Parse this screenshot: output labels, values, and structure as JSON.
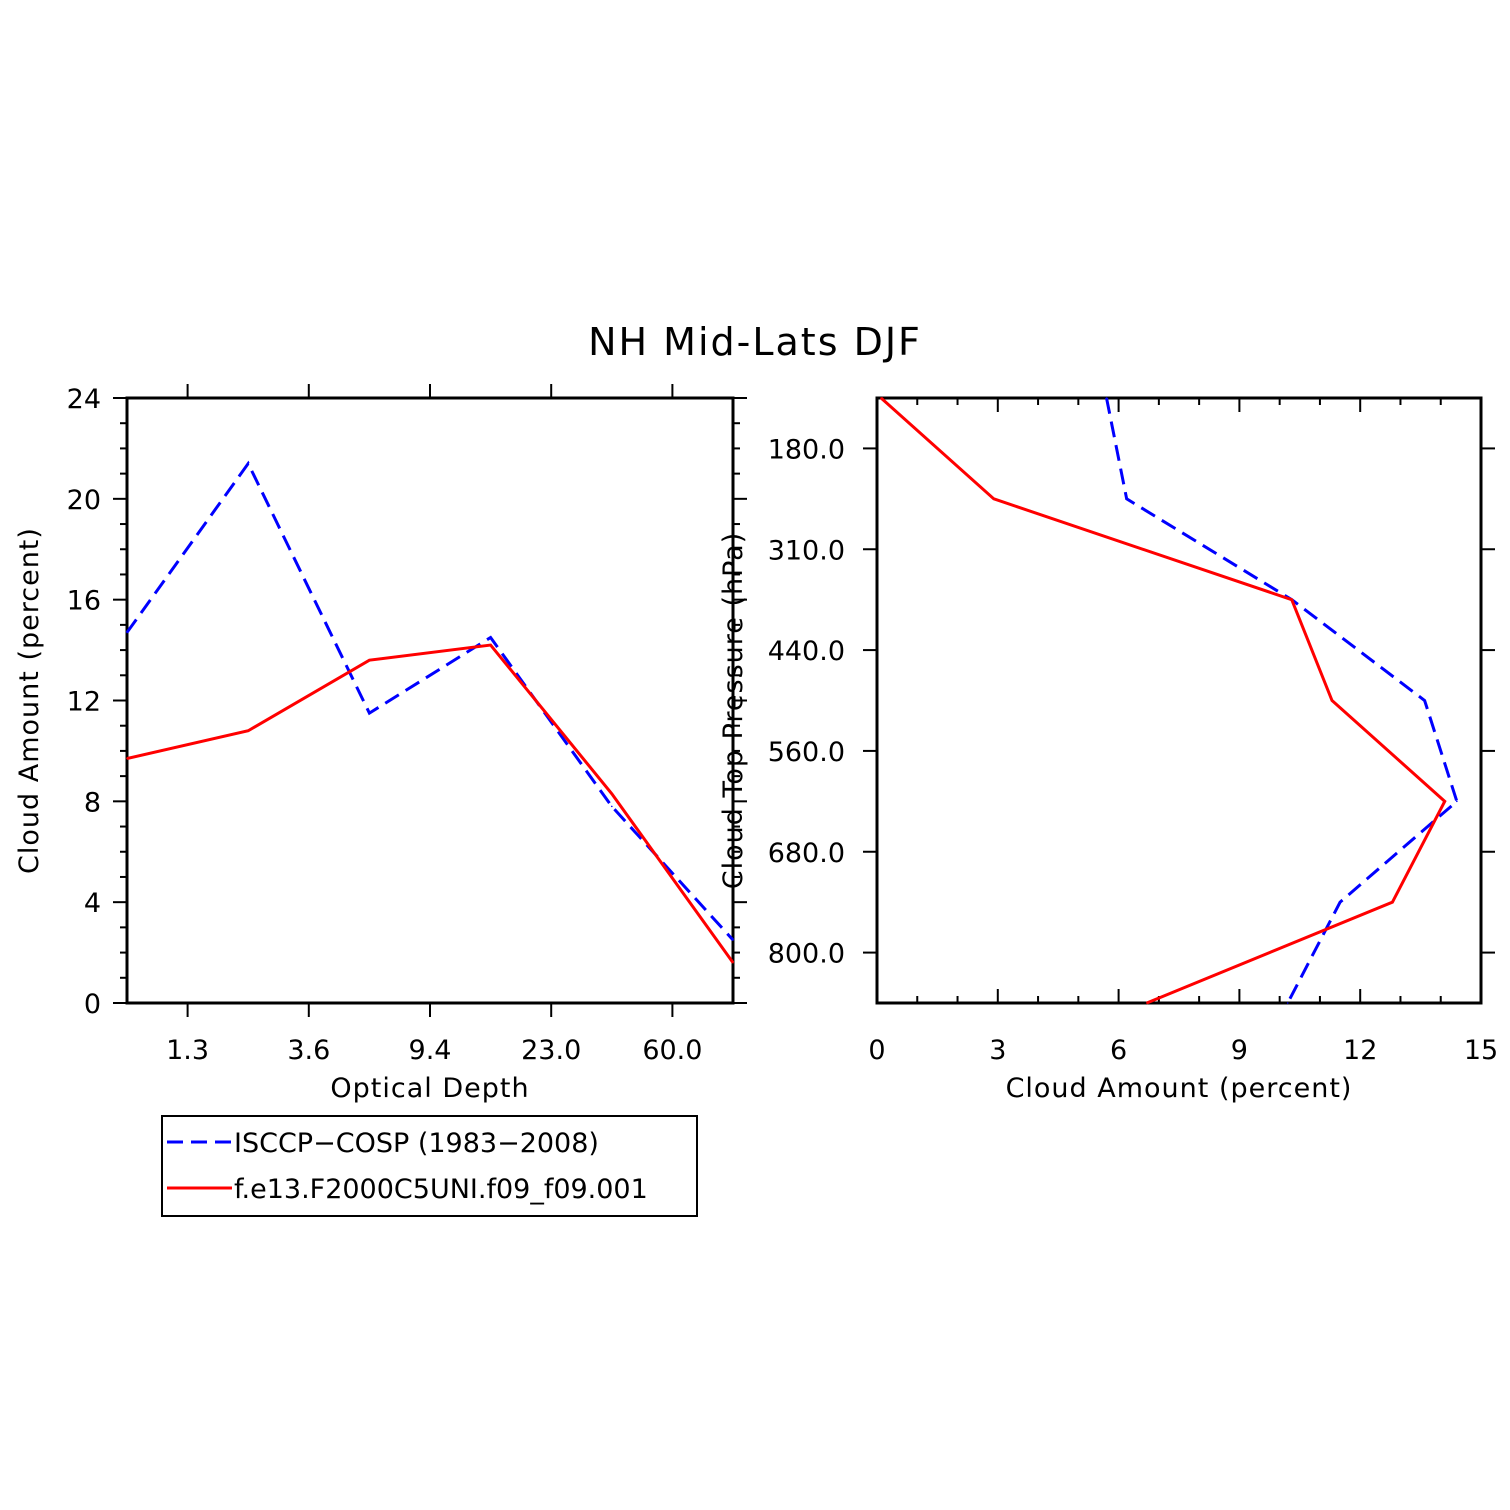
{
  "chart_title": "NH Mid-Lats DJF",
  "colors": {
    "obs": "#0000ff",
    "model": "#ff0000",
    "axis": "#000000"
  },
  "legend": {
    "entries": [
      {
        "label": "ISCCP−COSP (1983−2008)",
        "color": "#0000ff",
        "style": "dashed"
      },
      {
        "label": "f.e13.F2000C5UNI.f09_f09.001",
        "color": "#ff0000",
        "style": "solid"
      }
    ]
  },
  "chart_data": [
    {
      "type": "line",
      "title": "",
      "xlabel": "Optical Depth",
      "ylabel": "Cloud Amount (percent)",
      "x_tick_labels": [
        "1.3",
        "3.6",
        "9.4",
        "23.0",
        "60.0"
      ],
      "x_categories": [
        0,
        1,
        2,
        3,
        4,
        5
      ],
      "ylim": [
        0,
        24
      ],
      "y_ticks": [
        0,
        4,
        8,
        12,
        16,
        20,
        24
      ],
      "grid": false,
      "legend_position": "below",
      "series": [
        {
          "name": "ISCCP−COSP (1983−2008)",
          "style": "dashed",
          "color": "#0000ff",
          "values": [
            14.7,
            21.4,
            11.5,
            14.5,
            7.8,
            2.5
          ]
        },
        {
          "name": "f.e13.F2000C5UNI.f09_f09.001",
          "style": "solid",
          "color": "#ff0000",
          "values": [
            9.7,
            10.8,
            13.6,
            14.2,
            8.3,
            1.6
          ]
        }
      ]
    },
    {
      "type": "line",
      "title": "",
      "xlabel": "Cloud Amount (percent)",
      "ylabel": "Cloud Top Pressure (hPa)",
      "xlim": [
        0,
        15
      ],
      "x_ticks": [
        0,
        3,
        6,
        9,
        12,
        15
      ],
      "y_tick_labels": [
        "180.0",
        "310.0",
        "440.0",
        "560.0",
        "680.0",
        "800.0"
      ],
      "y_levels": [
        0,
        1,
        2,
        3,
        4,
        5,
        6
      ],
      "grid": false,
      "series": [
        {
          "name": "ISCCP−COSP (1983−2008)",
          "style": "dashed",
          "color": "#0000ff",
          "values": [
            5.7,
            6.2,
            10.3,
            13.6,
            14.4,
            11.5,
            10.2
          ]
        },
        {
          "name": "f.e13.F2000C5UNI.f09_f09.001",
          "style": "solid",
          "color": "#ff0000",
          "values": [
            0.1,
            2.9,
            10.3,
            11.3,
            14.1,
            12.8,
            6.7
          ]
        }
      ]
    }
  ]
}
